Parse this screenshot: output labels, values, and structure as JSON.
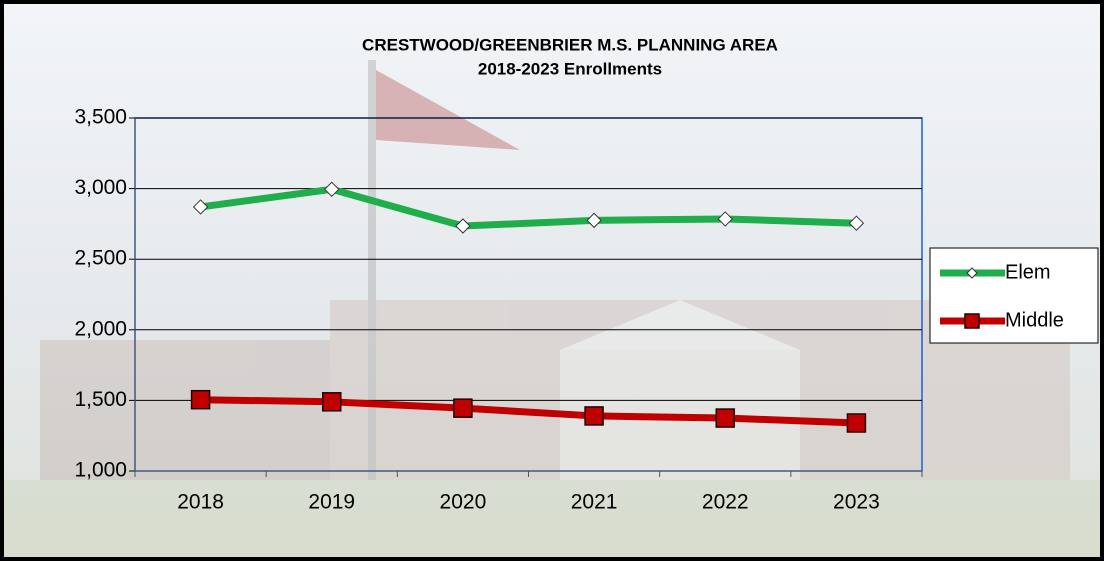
{
  "chart_data": {
    "type": "line",
    "title": "CRESTWOOD/GREENBRIER M.S. PLANNING AREA",
    "subtitle": "2018-2023 Enrollments",
    "categories": [
      "2018",
      "2019",
      "2020",
      "2021",
      "2022",
      "2023"
    ],
    "series": [
      {
        "name": "Elem",
        "color": "#1fae4b",
        "marker": "diamond",
        "values": [
          2870,
          2995,
          2735,
          2775,
          2785,
          2755
        ]
      },
      {
        "name": "Middle",
        "color": "#c00000",
        "marker": "square",
        "values": [
          1505,
          1490,
          1445,
          1390,
          1375,
          1340
        ]
      }
    ],
    "ylim": [
      1000,
      3500
    ],
    "yticks": [
      {
        "value": 1000,
        "label": "1,000"
      },
      {
        "value": 1500,
        "label": "1,500"
      },
      {
        "value": 2000,
        "label": "2,000"
      },
      {
        "value": 2500,
        "label": "2,500"
      },
      {
        "value": 3000,
        "label": "3,000"
      },
      {
        "value": 3500,
        "label": "3,500"
      }
    ],
    "grid": true,
    "legend": "right"
  }
}
